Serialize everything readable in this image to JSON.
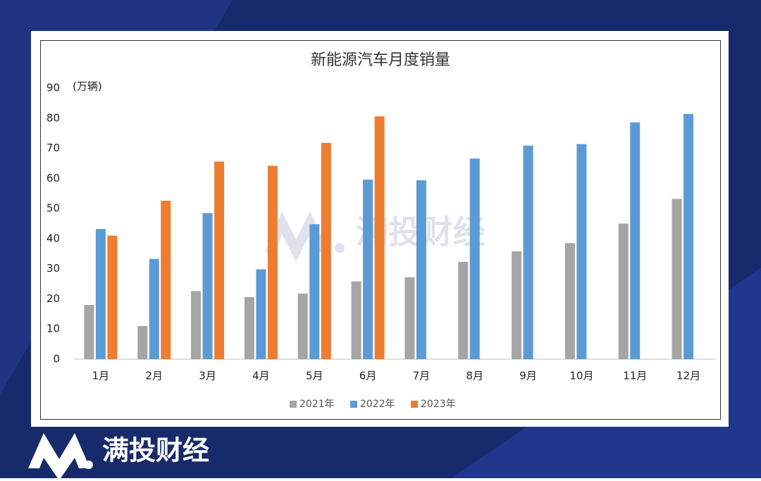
{
  "brand": "满投财经",
  "chart_data": {
    "type": "bar",
    "title": "新能源汽车月度销量",
    "y_label": "(万辆)",
    "categories": [
      "1月",
      "2月",
      "3月",
      "4月",
      "5月",
      "6月",
      "7月",
      "8月",
      "9月",
      "10月",
      "11月",
      "12月"
    ],
    "series": [
      {
        "name": "2021年",
        "color": "#a5a5a5",
        "values": [
          18,
          11,
          22.6,
          20.6,
          21.8,
          25.8,
          27.2,
          32.3,
          35.8,
          38.5,
          45,
          53.2
        ]
      },
      {
        "name": "2022年",
        "color": "#5b9bd5",
        "values": [
          43.2,
          33.3,
          48.5,
          29.8,
          44.8,
          59.6,
          59.4,
          66.6,
          70.9,
          71.4,
          78.6,
          81.4
        ]
      },
      {
        "name": "2023年",
        "color": "#ed7d31",
        "values": [
          41,
          52.6,
          65.6,
          64.2,
          71.8,
          80.6,
          null,
          null,
          null,
          null,
          null,
          null
        ]
      }
    ],
    "ylim": [
      0,
      90
    ],
    "yticks": [
      0,
      10,
      20,
      30,
      40,
      50,
      60,
      70,
      80,
      90
    ],
    "grid": false,
    "legend": "bottom"
  }
}
